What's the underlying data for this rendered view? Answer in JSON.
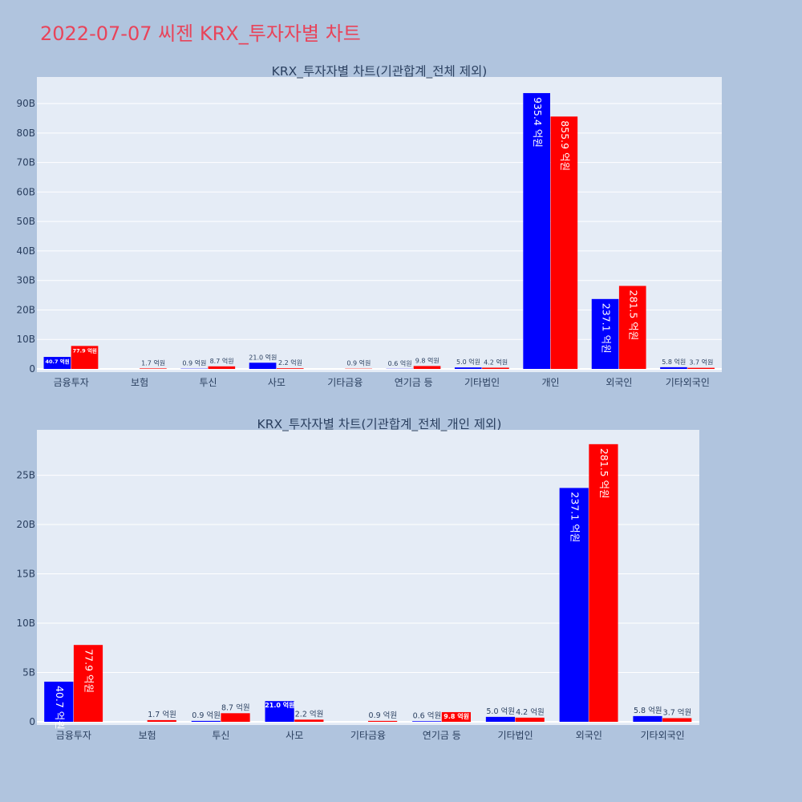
{
  "page": {
    "title": "2022-07-07 씨젠 KRX_투자자별 차트"
  },
  "colors": {
    "background": "#b0c4de",
    "plot_background": "#e5ecf6",
    "buy": "#0000ff",
    "sell": "#ff0000",
    "title": "#e8445a",
    "text": "#2a3f5f"
  },
  "chart_data": [
    {
      "type": "bar",
      "title": "KRX_투자자별 차트(기관합계_전체 제외)",
      "xlabel": "",
      "ylabel": "",
      "ylim": [
        0,
        99
      ],
      "grid": true,
      "legend": "none",
      "yticks": [
        0,
        10,
        20,
        30,
        40,
        50,
        60,
        70,
        80,
        90
      ],
      "ytick_labels": [
        "0",
        "10B",
        "20B",
        "30B",
        "40B",
        "50B",
        "60B",
        "70B",
        "80B",
        "90B"
      ],
      "categories": [
        "금융투자",
        "보험",
        "투신",
        "사모",
        "기타금융",
        "연기금 등",
        "기타법인",
        "개인",
        "외국인",
        "기타외국인"
      ],
      "series": [
        {
          "color": "#0000ff",
          "values": [
            4.07,
            0,
            0.09,
            2.1,
            0,
            0.06,
            0.5,
            93.54,
            23.71,
            0.58
          ],
          "labels": [
            "40.7 억원",
            "",
            "0.9 억원",
            "21.0 억원",
            "",
            "0.6 억원",
            "5.0 억원",
            "935.4 억원",
            "237.1 억원",
            "5.8 억원"
          ]
        },
        {
          "color": "#ff0000",
          "values": [
            7.79,
            0.17,
            0.87,
            0.22,
            0.09,
            0.98,
            0.42,
            85.59,
            28.15,
            0.37
          ],
          "labels": [
            "77.9 억원",
            "1.7 억원",
            "8.7 억원",
            "2.2 억원",
            "0.9 억원",
            "9.8 억원",
            "4.2 억원",
            "855.9 억원",
            "281.5 억원",
            "3.7 억원"
          ]
        }
      ]
    },
    {
      "type": "bar",
      "title": "KRX_투자자별 차트(기관합계_전체_개인 제외)",
      "xlabel": "",
      "ylabel": "",
      "ylim": [
        0,
        29.6
      ],
      "grid": true,
      "legend": "none",
      "yticks": [
        0,
        5,
        10,
        15,
        20,
        25
      ],
      "ytick_labels": [
        "0",
        "5B",
        "10B",
        "15B",
        "20B",
        "25B"
      ],
      "categories": [
        "금융투자",
        "보험",
        "투신",
        "사모",
        "기타금융",
        "연기금 등",
        "기타법인",
        "외국인",
        "기타외국인"
      ],
      "series": [
        {
          "color": "#0000ff",
          "values": [
            4.07,
            0,
            0.09,
            2.1,
            0,
            0.06,
            0.5,
            23.71,
            0.58
          ],
          "labels": [
            "40.7 억원",
            "",
            "0.9 억원",
            "21.0 억원",
            "",
            "0.6 억원",
            "5.0 억원",
            "237.1 억원",
            "5.8 억원"
          ]
        },
        {
          "color": "#ff0000",
          "values": [
            7.79,
            0.17,
            0.87,
            0.22,
            0.09,
            0.98,
            0.42,
            28.15,
            0.37
          ],
          "labels": [
            "77.9 억원",
            "1.7 억원",
            "8.7 억원",
            "2.2 억원",
            "0.9 억원",
            "9.8 억원",
            "4.2 억원",
            "281.5 억원",
            "3.7 억원"
          ]
        }
      ]
    }
  ]
}
